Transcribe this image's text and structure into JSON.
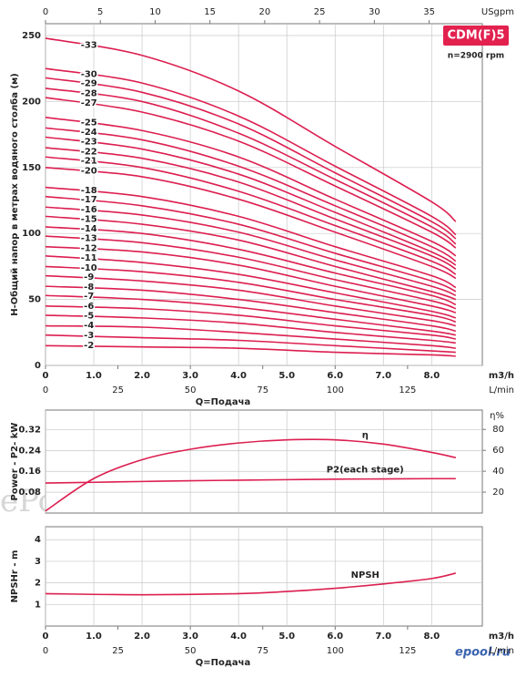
{
  "watermark": "ePool.ru",
  "logo": "epool.ru",
  "chart_data": [
    {
      "type": "line",
      "title": "CDM(F)5",
      "subtitle": "n=2900 rpm",
      "ylabel": "H-Общий напор в метрах водяного столба (м)",
      "xlabel": "Q=Подача",
      "xunit": "m3/h",
      "x2unit": "L/min",
      "x3unit": "USgpm",
      "xlim": [
        0,
        9.05
      ],
      "xticks": [
        0,
        {
          "value": 1,
          "label": "1.0"
        },
        {
          "value": 2,
          "label": "2.0"
        },
        {
          "value": 3,
          "label": "3.0"
        },
        {
          "value": 4,
          "label": "4.0"
        },
        {
          "value": 5,
          "label": "5.0"
        },
        {
          "value": 6,
          "label": "6.0"
        },
        {
          "value": 7,
          "label": "7.0"
        },
        {
          "value": 8,
          "label": "8.0"
        }
      ],
      "x2lim": [
        0,
        150.8
      ],
      "x2ticks": [
        0,
        25,
        50,
        75,
        100,
        125
      ],
      "x3lim": [
        0,
        39.85
      ],
      "x3ticks": [
        0,
        5,
        10,
        15,
        20,
        25,
        30,
        35
      ],
      "ylim": [
        0,
        259
      ],
      "yticks": [
        0,
        50,
        100,
        150,
        200,
        250
      ],
      "grid": true,
      "x": [
        0,
        2,
        4,
        6,
        8,
        8.5
      ],
      "series": [
        {
          "name": "-33",
          "color": "#dc1f50",
          "values": [
            248,
            235,
            208,
            166,
            124,
            109
          ]
        },
        {
          "name": "-30",
          "color": "#dc1f50",
          "values": [
            225,
            214,
            189,
            151,
            113,
            99
          ]
        },
        {
          "name": "-29",
          "color": "#dc1f50",
          "values": [
            218,
            207,
            183,
            146,
            109,
            96
          ]
        },
        {
          "name": "-28",
          "color": "#dc1f50",
          "values": [
            210,
            200,
            176,
            141,
            105,
            92
          ]
        },
        {
          "name": "-27",
          "color": "#dc1f50",
          "values": [
            203,
            192,
            170,
            136,
            101,
            89
          ]
        },
        {
          "name": "-25",
          "color": "#dc1f50",
          "values": [
            188,
            178,
            158,
            126,
            94,
            83
          ]
        },
        {
          "name": "-24",
          "color": "#dc1f50",
          "values": [
            180,
            171,
            151,
            121,
            90,
            79
          ]
        },
        {
          "name": "-23",
          "color": "#dc1f50",
          "values": [
            173,
            164,
            145,
            116,
            86,
            76
          ]
        },
        {
          "name": "-22",
          "color": "#dc1f50",
          "values": [
            165,
            157,
            139,
            111,
            83,
            73
          ]
        },
        {
          "name": "-21",
          "color": "#dc1f50",
          "values": [
            158,
            150,
            132,
            106,
            79,
            69
          ]
        },
        {
          "name": "-20",
          "color": "#dc1f50",
          "values": [
            150,
            143,
            126,
            101,
            75,
            66
          ]
        },
        {
          "name": "-18",
          "color": "#dc1f50",
          "values": [
            135,
            128,
            113,
            90,
            68,
            59
          ]
        },
        {
          "name": "-17",
          "color": "#dc1f50",
          "values": [
            128,
            121,
            107,
            85,
            64,
            56
          ]
        },
        {
          "name": "-16",
          "color": "#dc1f50",
          "values": [
            120,
            114,
            101,
            80,
            60,
            53
          ]
        },
        {
          "name": "-15",
          "color": "#dc1f50",
          "values": [
            113,
            107,
            95,
            75,
            56,
            50
          ]
        },
        {
          "name": "-14",
          "color": "#dc1f50",
          "values": [
            105,
            100,
            88,
            70,
            53,
            46
          ]
        },
        {
          "name": "-13",
          "color": "#dc1f50",
          "values": [
            98,
            93,
            82,
            65,
            49,
            43
          ]
        },
        {
          "name": "-12",
          "color": "#dc1f50",
          "values": [
            90,
            86,
            76,
            60,
            45,
            40
          ]
        },
        {
          "name": "-11",
          "color": "#dc1f50",
          "values": [
            83,
            78,
            69,
            55,
            41,
            36
          ]
        },
        {
          "name": "-10",
          "color": "#dc1f50",
          "values": [
            75,
            71,
            63,
            50,
            38,
            33
          ]
        },
        {
          "name": "-9",
          "color": "#dc1f50",
          "values": [
            68,
            64,
            57,
            45,
            34,
            30
          ]
        },
        {
          "name": "-8",
          "color": "#dc1f50",
          "values": [
            60,
            57,
            50,
            40,
            30,
            26
          ]
        },
        {
          "name": "-7",
          "color": "#dc1f50",
          "values": [
            53,
            50,
            44,
            35,
            26,
            23
          ]
        },
        {
          "name": "-6",
          "color": "#dc1f50",
          "values": [
            45,
            43,
            38,
            30,
            23,
            20
          ]
        },
        {
          "name": "-5",
          "color": "#dc1f50",
          "values": [
            38,
            36,
            32,
            25,
            19,
            17
          ]
        },
        {
          "name": "-4",
          "color": "#dc1f50",
          "values": [
            30,
            29,
            25,
            20,
            15,
            13
          ]
        },
        {
          "name": "-3",
          "color": "#dc1f50",
          "values": [
            23,
            21,
            19,
            15,
            11,
            10
          ]
        },
        {
          "name": "-2",
          "color": "#dc1f50",
          "values": [
            15,
            14,
            13,
            10,
            8,
            7
          ]
        }
      ]
    },
    {
      "type": "line",
      "ylabel": "Power - P2- kW",
      "y2label": "η%",
      "xlim": [
        0,
        9.05
      ],
      "xticks": [
        0,
        1,
        2,
        3,
        4,
        5,
        6,
        7,
        8
      ],
      "xtick_labels": false,
      "ylim": [
        0,
        0.395
      ],
      "yticks": [
        0.08,
        0.16,
        0.24,
        0.32
      ],
      "y2lim": [
        0,
        98.5
      ],
      "y2ticks": [
        20,
        40,
        60,
        80
      ],
      "grid": true,
      "x": [
        0,
        1,
        2,
        3,
        4,
        5,
        6,
        7,
        8,
        8.5
      ],
      "series": [
        {
          "name": "η",
          "color": "#dc1f50",
          "axis": "y2",
          "values": [
            2,
            33,
            51,
            61,
            67,
            70,
            70,
            66,
            58,
            53
          ]
        },
        {
          "name": "P2(each stage)",
          "color": "#dc1f50",
          "values": [
            0.115,
            0.118,
            0.121,
            0.124,
            0.126,
            0.128,
            0.13,
            0.131,
            0.132,
            0.132
          ]
        }
      ]
    },
    {
      "type": "line",
      "ylabel": "NPSHr - m",
      "xlabel": "Q=Подача",
      "xunit": "m3/h",
      "x2unit": "L/min",
      "xlim": [
        0,
        9.05
      ],
      "xticks": [
        0,
        {
          "value": 1,
          "label": "1.0"
        },
        {
          "value": 2,
          "label": "2.0"
        },
        {
          "value": 3,
          "label": "3.0"
        },
        {
          "value": 4,
          "label": "4.0"
        },
        {
          "value": 5,
          "label": "5.0"
        },
        {
          "value": 6,
          "label": "6.0"
        },
        {
          "value": 7,
          "label": "7.0"
        },
        {
          "value": 8,
          "label": "8.0"
        }
      ],
      "x2lim": [
        0,
        150.8
      ],
      "x2ticks": [
        0,
        25,
        50,
        75,
        100,
        125
      ],
      "ylim": [
        0,
        4.6
      ],
      "yticks": [
        1,
        2,
        3,
        4
      ],
      "grid": true,
      "x": [
        0,
        2,
        4,
        5,
        6,
        7,
        8,
        8.5
      ],
      "series": [
        {
          "name": "NPSH",
          "color": "#dc1f50",
          "values": [
            1.5,
            1.45,
            1.5,
            1.6,
            1.75,
            1.95,
            2.2,
            2.45
          ]
        }
      ]
    }
  ]
}
